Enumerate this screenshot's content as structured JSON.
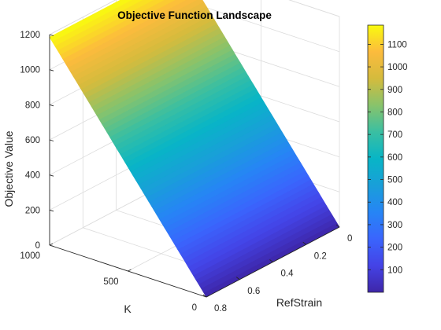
{
  "chart_data": {
    "type": "surface",
    "title": "Objective Function Landscape",
    "xlabel": "RefStrain",
    "ylabel": "K",
    "zlabel": "Objective Value",
    "x_ticks": [
      0,
      0.2,
      0.4,
      0.6,
      0.8
    ],
    "y_ticks": [
      0,
      500,
      1000
    ],
    "z_ticks": [
      0,
      200,
      400,
      600,
      800,
      1000,
      1200
    ],
    "xlim": [
      0,
      0.8
    ],
    "ylim": [
      0,
      1000
    ],
    "zlim": [
      0,
      1200
    ],
    "colorbar": {
      "ticks": [
        100,
        200,
        300,
        400,
        500,
        600,
        700,
        800,
        900,
        1000,
        1100
      ],
      "range": [
        0,
        1185
      ],
      "colormap": "parula"
    },
    "surface": {
      "description_values": "Objective value depends on K only; approximately linear from 0 at K=0 to ~1185 at K=1000, constant across RefStrain",
      "K": [
        0,
        250,
        500,
        750,
        1000
      ],
      "objective": [
        0,
        296,
        592,
        889,
        1185
      ]
    },
    "grid": true,
    "box": true
  }
}
